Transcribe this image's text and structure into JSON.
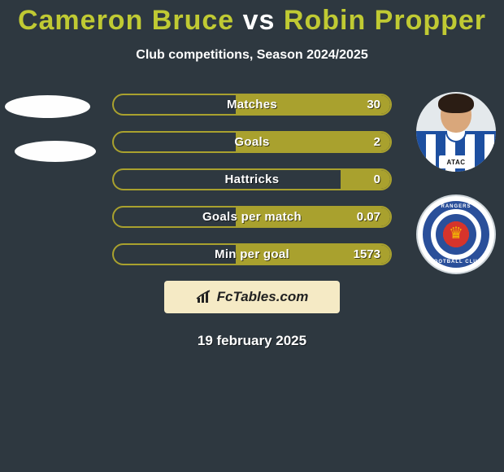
{
  "title": {
    "player1": "Cameron Bruce",
    "vs": "vs",
    "player2": "Robin Propper"
  },
  "subtitle": "Club competitions, Season 2024/2025",
  "colors": {
    "accent": "#c0ca33",
    "bar_fill": "#a9a12e",
    "bar_border": "#a9a12e",
    "background": "#2e3840",
    "watermark_bg": "#f5eac5",
    "badge_ring": "#2a4f9a",
    "badge_center": "#d6342b",
    "jersey_blue": "#1d4fa0"
  },
  "player2_avatar": {
    "sponsor_text": "ATAC"
  },
  "badge": {
    "ring_text_top": "RANGERS",
    "ring_text_bottom": "FOOTBALL CLUB"
  },
  "stats": [
    {
      "label": "Matches",
      "right_value": "30",
      "right_fill_pct": 56
    },
    {
      "label": "Goals",
      "right_value": "2",
      "right_fill_pct": 56
    },
    {
      "label": "Hattricks",
      "right_value": "0",
      "right_fill_pct": 18
    },
    {
      "label": "Goals per match",
      "right_value": "0.07",
      "right_fill_pct": 56
    },
    {
      "label": "Min per goal",
      "right_value": "1573",
      "right_fill_pct": 56
    }
  ],
  "watermark": {
    "text": "FcTables.com"
  },
  "date": "19 february 2025"
}
